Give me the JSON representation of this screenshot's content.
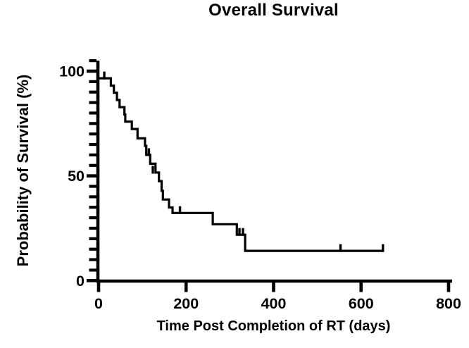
{
  "figure": {
    "background": "#ffffff",
    "ink_color": "#000000"
  },
  "chart_data": {
    "type": "line",
    "subtype": "kaplan-meier-step",
    "title": "Overall Survival",
    "xlabel": "Time Post Completion of RT (days)",
    "ylabel": "Probability of Survival (%)",
    "xlim": [
      0,
      800
    ],
    "ylim": [
      0,
      105
    ],
    "xticks": [
      0,
      200,
      400,
      600,
      800
    ],
    "yticks_major": [
      0,
      50,
      100
    ],
    "ytick_minor_step": 5,
    "grid": false,
    "legend": null,
    "series": [
      {
        "name": "Overall Survival",
        "color": "#000000",
        "steps": [
          [
            0,
            96.6
          ],
          [
            28,
            93.1
          ],
          [
            35,
            89.7
          ],
          [
            42,
            86.2
          ],
          [
            48,
            82.8
          ],
          [
            59,
            79.3
          ],
          [
            61,
            75.9
          ],
          [
            76,
            72.4
          ],
          [
            89,
            67.9
          ],
          [
            106,
            64.3
          ],
          [
            109,
            60.0
          ],
          [
            118,
            55.8
          ],
          [
            130,
            51.6
          ],
          [
            138,
            47.5
          ],
          [
            144,
            42.9
          ],
          [
            147,
            38.7
          ],
          [
            161,
            34.9
          ],
          [
            169,
            32.3
          ],
          [
            261,
            26.9
          ],
          [
            316,
            21.9
          ],
          [
            335,
            14.2
          ]
        ],
        "end_day": 650,
        "censor_marks": [
          [
            13,
            96.6
          ],
          [
            115,
            60.0
          ],
          [
            124,
            51.6
          ],
          [
            186,
            32.3
          ],
          [
            322,
            21.9
          ],
          [
            330,
            21.9
          ],
          [
            553,
            14.2
          ],
          [
            650,
            14.2
          ]
        ]
      }
    ]
  }
}
